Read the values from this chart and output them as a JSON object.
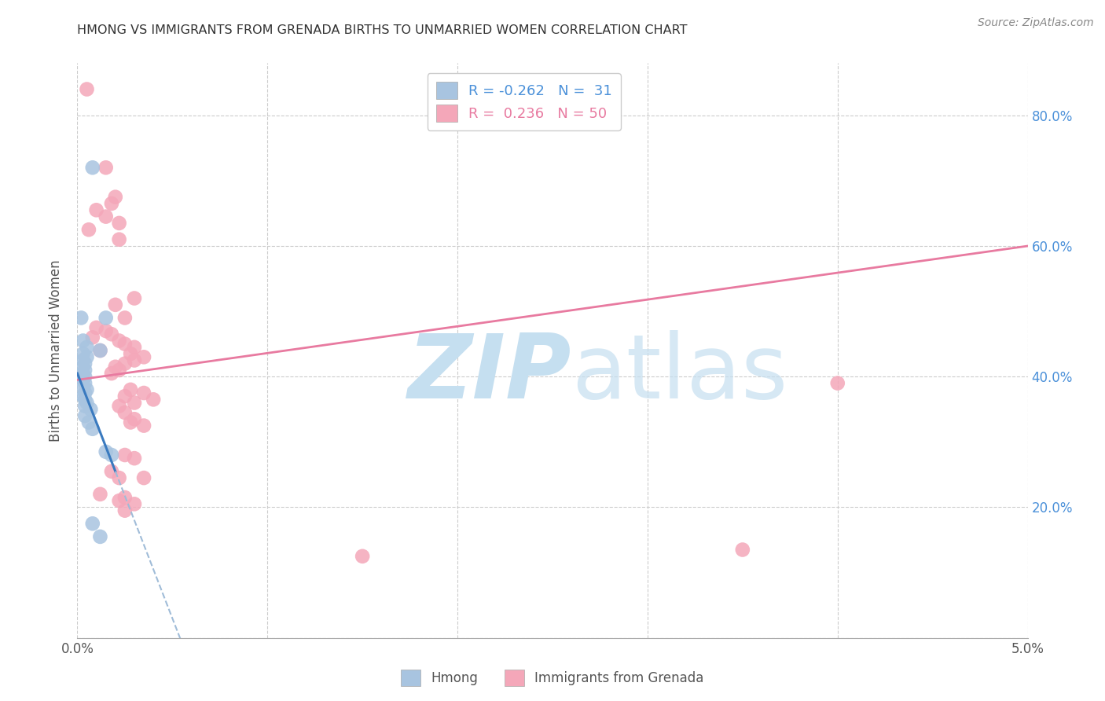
{
  "title": "HMONG VS IMMIGRANTS FROM GRENADA BIRTHS TO UNMARRIED WOMEN CORRELATION CHART",
  "source": "Source: ZipAtlas.com",
  "ylabel": "Births to Unmarried Women",
  "xmin": 0.0,
  "xmax": 0.05,
  "ymin": 0.0,
  "ymax": 0.88,
  "yticks": [
    0.0,
    0.2,
    0.4,
    0.6,
    0.8
  ],
  "ytick_labels": [
    "",
    "20.0%",
    "40.0%",
    "60.0%",
    "80.0%"
  ],
  "xticks": [
    0.0,
    0.01,
    0.02,
    0.03,
    0.04,
    0.05
  ],
  "xtick_labels": [
    "0.0%",
    "",
    "",
    "",
    "",
    "5.0%"
  ],
  "hmong_R": -0.262,
  "hmong_N": 31,
  "grenada_R": 0.236,
  "grenada_N": 50,
  "legend_labels": [
    "Hmong",
    "Immigrants from Grenada"
  ],
  "hmong_color": "#a8c4e0",
  "grenada_color": "#f4a7b9",
  "hmong_line_color": "#3a7abf",
  "hmong_line_dash_color": "#a0bcd8",
  "grenada_line_color": "#e87aa0",
  "hmong_dots": [
    [
      0.0008,
      0.72
    ],
    [
      0.0002,
      0.49
    ],
    [
      0.0015,
      0.49
    ],
    [
      0.0003,
      0.455
    ],
    [
      0.0005,
      0.445
    ],
    [
      0.0012,
      0.44
    ],
    [
      0.0003,
      0.435
    ],
    [
      0.0005,
      0.43
    ],
    [
      0.0003,
      0.425
    ],
    [
      0.0004,
      0.42
    ],
    [
      0.0003,
      0.415
    ],
    [
      0.0004,
      0.41
    ],
    [
      0.0003,
      0.405
    ],
    [
      0.0004,
      0.4
    ],
    [
      0.0003,
      0.395
    ],
    [
      0.0004,
      0.39
    ],
    [
      0.0003,
      0.385
    ],
    [
      0.0005,
      0.38
    ],
    [
      0.0004,
      0.375
    ],
    [
      0.0003,
      0.37
    ],
    [
      0.0004,
      0.365
    ],
    [
      0.0005,
      0.36
    ],
    [
      0.0004,
      0.355
    ],
    [
      0.0007,
      0.35
    ],
    [
      0.0004,
      0.34
    ],
    [
      0.0006,
      0.33
    ],
    [
      0.0008,
      0.32
    ],
    [
      0.0015,
      0.285
    ],
    [
      0.0018,
      0.28
    ],
    [
      0.0008,
      0.175
    ],
    [
      0.0012,
      0.155
    ]
  ],
  "grenada_dots": [
    [
      0.0005,
      0.84
    ],
    [
      0.0015,
      0.72
    ],
    [
      0.002,
      0.675
    ],
    [
      0.0018,
      0.665
    ],
    [
      0.001,
      0.655
    ],
    [
      0.0015,
      0.645
    ],
    [
      0.0022,
      0.635
    ],
    [
      0.0006,
      0.625
    ],
    [
      0.0022,
      0.61
    ],
    [
      0.003,
      0.52
    ],
    [
      0.002,
      0.51
    ],
    [
      0.0025,
      0.49
    ],
    [
      0.001,
      0.475
    ],
    [
      0.0015,
      0.47
    ],
    [
      0.0018,
      0.465
    ],
    [
      0.0008,
      0.46
    ],
    [
      0.0022,
      0.455
    ],
    [
      0.0025,
      0.45
    ],
    [
      0.003,
      0.445
    ],
    [
      0.0012,
      0.44
    ],
    [
      0.0028,
      0.435
    ],
    [
      0.0035,
      0.43
    ],
    [
      0.003,
      0.425
    ],
    [
      0.0025,
      0.42
    ],
    [
      0.002,
      0.415
    ],
    [
      0.0022,
      0.41
    ],
    [
      0.0018,
      0.405
    ],
    [
      0.0028,
      0.38
    ],
    [
      0.0035,
      0.375
    ],
    [
      0.0025,
      0.37
    ],
    [
      0.004,
      0.365
    ],
    [
      0.003,
      0.36
    ],
    [
      0.0022,
      0.355
    ],
    [
      0.0025,
      0.345
    ],
    [
      0.003,
      0.335
    ],
    [
      0.0028,
      0.33
    ],
    [
      0.0035,
      0.325
    ],
    [
      0.0025,
      0.28
    ],
    [
      0.003,
      0.275
    ],
    [
      0.0018,
      0.255
    ],
    [
      0.0022,
      0.245
    ],
    [
      0.0035,
      0.245
    ],
    [
      0.0012,
      0.22
    ],
    [
      0.0025,
      0.215
    ],
    [
      0.0022,
      0.21
    ],
    [
      0.003,
      0.205
    ],
    [
      0.0025,
      0.195
    ],
    [
      0.04,
      0.39
    ],
    [
      0.035,
      0.135
    ],
    [
      0.015,
      0.125
    ]
  ],
  "background_color": "#ffffff",
  "grid_color": "#cccccc",
  "watermark_color": "#c5dff0"
}
